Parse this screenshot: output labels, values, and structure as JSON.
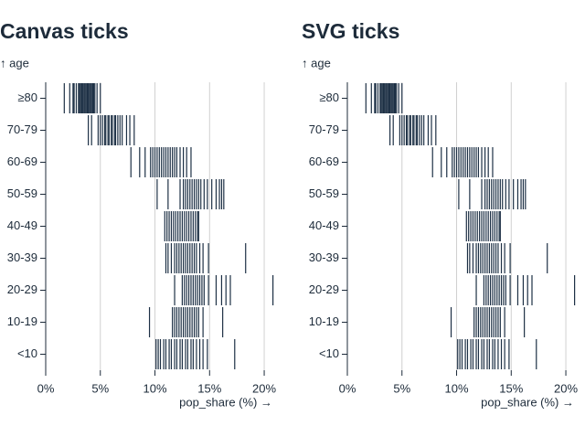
{
  "chart_data": [
    {
      "type": "tick",
      "title": "Canvas ticks",
      "y_label": "↑ age",
      "x_label": "pop_share (%) →",
      "color": "#1d3045",
      "categories": [
        "≥80",
        "70-79",
        "60-69",
        "50-59",
        "40-49",
        "30-39",
        "20-29",
        "10-19",
        "<10"
      ],
      "values": [
        [
          1.7,
          2.2,
          2.5,
          2.6,
          2.8,
          3.0,
          3.1,
          3.2,
          3.3,
          3.4,
          3.5,
          3.6,
          3.7,
          3.8,
          3.9,
          4.0,
          4.1,
          4.2,
          4.3,
          4.4,
          4.5,
          4.7,
          5.0
        ],
        [
          3.9,
          4.2,
          4.8,
          5.0,
          5.2,
          5.4,
          5.5,
          5.7,
          5.8,
          6.0,
          6.1,
          6.3,
          6.4,
          6.6,
          6.8,
          7.0,
          7.4,
          7.7,
          8.1
        ],
        [
          7.8,
          8.6,
          9.1,
          9.6,
          9.8,
          10.0,
          10.2,
          10.4,
          10.6,
          10.8,
          11.0,
          11.2,
          11.4,
          11.6,
          11.8,
          12.0,
          12.3,
          12.6,
          12.9,
          13.3
        ],
        [
          10.2,
          11.2,
          12.3,
          12.6,
          12.8,
          13.0,
          13.2,
          13.4,
          13.6,
          13.8,
          14.0,
          14.2,
          14.5,
          14.8,
          15.2,
          15.6,
          15.9,
          16.1,
          16.3
        ],
        [
          10.9,
          11.1,
          11.3,
          11.5,
          11.7,
          11.9,
          12.1,
          12.3,
          12.5,
          12.7,
          12.9,
          13.1,
          13.3,
          13.5,
          13.7,
          13.9,
          14.0
        ],
        [
          11.0,
          11.2,
          11.5,
          11.8,
          12.0,
          12.2,
          12.4,
          12.6,
          12.8,
          13.0,
          13.2,
          13.4,
          13.6,
          13.8,
          14.1,
          14.4,
          14.9,
          18.3
        ],
        [
          11.8,
          12.5,
          12.7,
          12.9,
          13.1,
          13.3,
          13.5,
          13.7,
          13.9,
          14.1,
          14.3,
          14.5,
          14.9,
          15.6,
          16.1,
          16.5,
          16.9,
          20.8
        ],
        [
          9.5,
          11.6,
          11.8,
          12.0,
          12.2,
          12.4,
          12.6,
          12.8,
          13.0,
          13.2,
          13.4,
          13.6,
          13.8,
          14.0,
          14.4,
          16.2
        ],
        [
          10.1,
          10.3,
          10.5,
          10.8,
          11.0,
          11.3,
          11.5,
          11.8,
          12.0,
          12.3,
          12.5,
          12.8,
          13.0,
          13.3,
          13.5,
          13.8,
          14.1,
          14.4,
          14.8,
          17.3
        ]
      ],
      "xlim": [
        0,
        21
      ],
      "xticks": [
        {
          "value": 0,
          "label": "0%"
        },
        {
          "value": 5,
          "label": "5%"
        },
        {
          "value": 10,
          "label": "10%"
        },
        {
          "value": 15,
          "label": "15%"
        },
        {
          "value": 20,
          "label": "20%"
        }
      ],
      "grid": true
    },
    {
      "type": "tick",
      "title": "SVG ticks",
      "y_label": "↑ age",
      "x_label": "pop_share (%) →",
      "color": "#1d3045",
      "categories": [
        "≥80",
        "70-79",
        "60-69",
        "50-59",
        "40-49",
        "30-39",
        "20-29",
        "10-19",
        "<10"
      ],
      "values": [
        [
          1.7,
          2.2,
          2.5,
          2.6,
          2.8,
          3.0,
          3.1,
          3.2,
          3.3,
          3.4,
          3.5,
          3.6,
          3.7,
          3.8,
          3.9,
          4.0,
          4.1,
          4.2,
          4.3,
          4.4,
          4.5,
          4.7,
          5.0
        ],
        [
          3.9,
          4.2,
          4.8,
          5.0,
          5.2,
          5.4,
          5.5,
          5.7,
          5.8,
          6.0,
          6.1,
          6.3,
          6.4,
          6.6,
          6.8,
          7.0,
          7.4,
          7.7,
          8.1
        ],
        [
          7.8,
          8.6,
          9.1,
          9.6,
          9.8,
          10.0,
          10.2,
          10.4,
          10.6,
          10.8,
          11.0,
          11.2,
          11.4,
          11.6,
          11.8,
          12.0,
          12.3,
          12.6,
          12.9,
          13.3
        ],
        [
          10.2,
          11.2,
          12.3,
          12.6,
          12.8,
          13.0,
          13.2,
          13.4,
          13.6,
          13.8,
          14.0,
          14.2,
          14.5,
          14.8,
          15.2,
          15.6,
          15.9,
          16.1,
          16.3
        ],
        [
          10.9,
          11.1,
          11.3,
          11.5,
          11.7,
          11.9,
          12.1,
          12.3,
          12.5,
          12.7,
          12.9,
          13.1,
          13.3,
          13.5,
          13.7,
          13.9,
          14.0
        ],
        [
          11.0,
          11.2,
          11.5,
          11.8,
          12.0,
          12.2,
          12.4,
          12.6,
          12.8,
          13.0,
          13.2,
          13.4,
          13.6,
          13.8,
          14.1,
          14.4,
          14.9,
          18.3
        ],
        [
          11.8,
          12.5,
          12.7,
          12.9,
          13.1,
          13.3,
          13.5,
          13.7,
          13.9,
          14.1,
          14.3,
          14.5,
          14.9,
          15.6,
          16.1,
          16.5,
          16.9,
          20.8
        ],
        [
          9.5,
          11.6,
          11.8,
          12.0,
          12.2,
          12.4,
          12.6,
          12.8,
          13.0,
          13.2,
          13.4,
          13.6,
          13.8,
          14.0,
          14.4,
          16.2
        ],
        [
          10.1,
          10.3,
          10.5,
          10.8,
          11.0,
          11.3,
          11.5,
          11.8,
          12.0,
          12.3,
          12.5,
          12.8,
          13.0,
          13.3,
          13.5,
          13.8,
          14.1,
          14.4,
          14.8,
          17.3
        ]
      ],
      "xlim": [
        0,
        21
      ],
      "xticks": [
        {
          "value": 0,
          "label": "0%"
        },
        {
          "value": 5,
          "label": "5%"
        },
        {
          "value": 10,
          "label": "10%"
        },
        {
          "value": 15,
          "label": "15%"
        },
        {
          "value": 20,
          "label": "20%"
        }
      ],
      "grid": true
    }
  ]
}
